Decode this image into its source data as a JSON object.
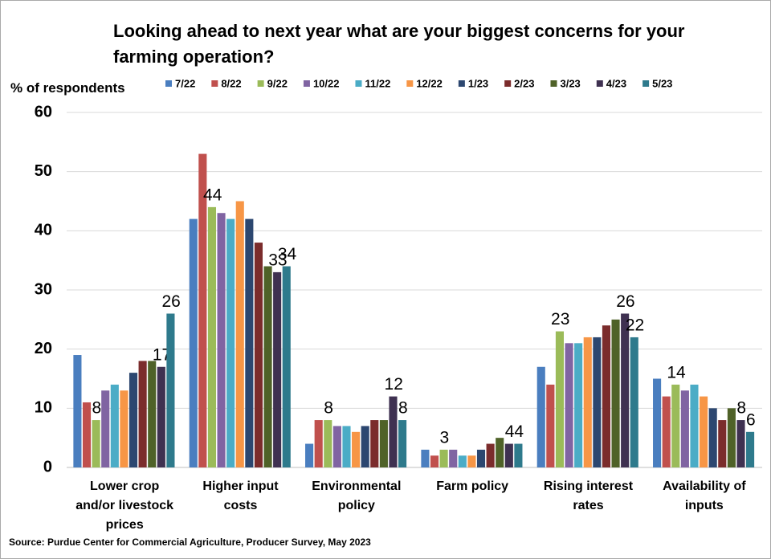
{
  "chart_data": {
    "type": "bar",
    "title": "Looking ahead to next year what are your biggest concerns for your farming operation?",
    "y_label": "% of respondents",
    "source": "Source: Purdue Center for Commercial Agriculture, Producer Survey, May 2023",
    "categories": [
      "Lower crop and/or livestock prices",
      "Higher input costs",
      "Environmental policy",
      "Farm policy",
      "Rising interest rates",
      "Availability of inputs"
    ],
    "series": [
      {
        "name": "7/22",
        "color": "#4a7ebf",
        "values": [
          19,
          42,
          4,
          3,
          17,
          15
        ]
      },
      {
        "name": "8/22",
        "color": "#c0504d",
        "values": [
          11,
          53,
          8,
          2,
          14,
          12
        ]
      },
      {
        "name": "9/22",
        "color": "#9bbb59",
        "values": [
          8,
          44,
          8,
          3,
          23,
          14
        ],
        "show_labels": true
      },
      {
        "name": "10/22",
        "color": "#8064a2",
        "values": [
          13,
          43,
          7,
          3,
          21,
          13
        ]
      },
      {
        "name": "11/22",
        "color": "#4bacc6",
        "values": [
          14,
          42,
          7,
          2,
          21,
          14
        ]
      },
      {
        "name": "12/22",
        "color": "#f79646",
        "values": [
          13,
          45,
          6,
          2,
          22,
          12
        ]
      },
      {
        "name": "1/23",
        "color": "#2c4770",
        "values": [
          16,
          42,
          7,
          3,
          22,
          10
        ]
      },
      {
        "name": "2/23",
        "color": "#7b2c2c",
        "values": [
          18,
          38,
          8,
          4,
          24,
          8
        ]
      },
      {
        "name": "3/23",
        "color": "#4f6228",
        "values": [
          18,
          34,
          8,
          5,
          25,
          10
        ]
      },
      {
        "name": "4/23",
        "color": "#3f3151",
        "values": [
          17,
          33,
          12,
          4,
          26,
          8
        ],
        "show_labels": true
      },
      {
        "name": "5/23",
        "color": "#2e7a8c",
        "values": [
          26,
          34,
          8,
          4,
          22,
          6
        ],
        "show_labels": true
      }
    ],
    "ylim": [
      0,
      60
    ],
    "yticks": [
      0,
      10,
      20,
      30,
      40,
      50,
      60
    ],
    "grid": true
  }
}
